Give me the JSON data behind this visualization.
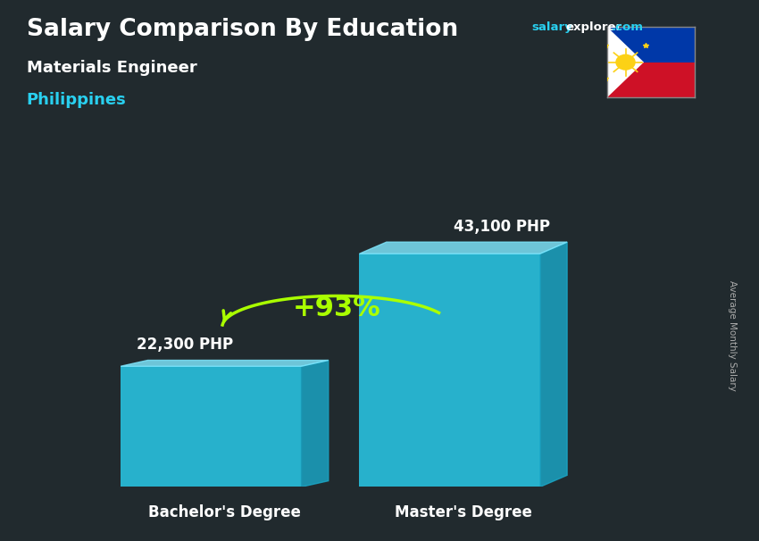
{
  "title": "Salary Comparison By Education",
  "subtitle": "Materials Engineer",
  "country": "Philippines",
  "categories": [
    "Bachelor's Degree",
    "Master's Degree"
  ],
  "values": [
    22300,
    43100
  ],
  "value_labels": [
    "22,300 PHP",
    "43,100 PHP"
  ],
  "pct_change": "+93%",
  "bar_color_main": "#29d0f0",
  "bar_color_side": "#1aa8c8",
  "bar_color_top": "#80e8ff",
  "bg_color": "#2a2a2a",
  "title_color": "#ffffff",
  "subtitle_color": "#ffffff",
  "country_color": "#29d0f0",
  "label_color": "#ffffff",
  "axis_label_color": "#ffffff",
  "pct_color": "#aaff00",
  "arrow_color": "#aaff00",
  "ylabel_text": "Average Monthly Salary",
  "ylim": [
    0,
    55000
  ],
  "bar_width": 0.28,
  "x_positions": [
    0.28,
    0.65
  ],
  "bar_alpha": 0.82
}
